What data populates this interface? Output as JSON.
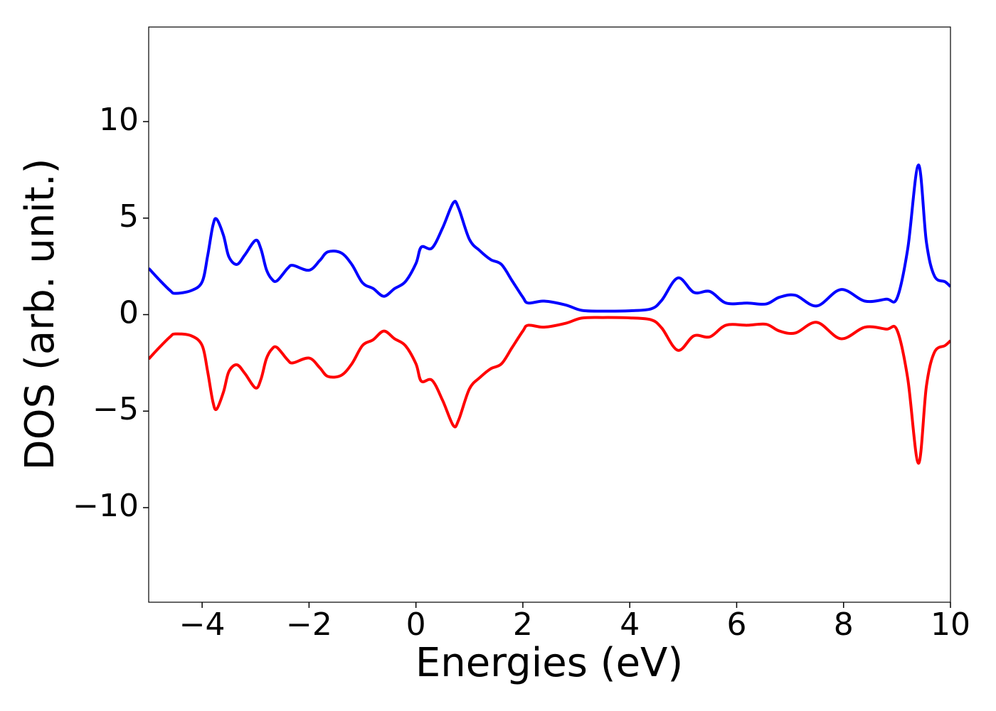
{
  "chart_data": {
    "type": "line",
    "x_label": "Energies (eV)",
    "y_label": "DOS (arb. unit.)",
    "x": [
      -5,
      -4.8,
      -4.6,
      -4.5,
      -4.2,
      -4.0,
      -3.9,
      -3.8,
      -3.73,
      -3.6,
      -3.5,
      -3.35,
      -3.2,
      -3.0,
      -2.9,
      -2.8,
      -2.7,
      -2.6,
      -2.4,
      -2.3,
      -2.0,
      -1.8,
      -1.65,
      -1.4,
      -1.2,
      -1.0,
      -0.8,
      -0.6,
      -0.4,
      -0.2,
      0,
      0.1,
      0.3,
      0.5,
      0.7,
      0.8,
      1.0,
      1.2,
      1.4,
      1.6,
      1.8,
      2.0,
      2.1,
      2.4,
      2.8,
      3.1,
      3.5,
      4.0,
      4.4,
      4.6,
      4.9,
      5.2,
      5.5,
      5.8,
      6.2,
      6.55,
      6.8,
      7.1,
      7.5,
      7.95,
      8.4,
      8.8,
      9.0,
      9.2,
      9.4,
      9.55,
      9.7,
      9.9,
      10
    ],
    "series": [
      {
        "color": "#0000ff",
        "values": [
          2.4,
          1.8,
          1.25,
          1.1,
          1.25,
          1.7,
          3.0,
          4.6,
          4.95,
          4.1,
          3.0,
          2.6,
          3.1,
          3.85,
          3.4,
          2.35,
          1.85,
          1.75,
          2.4,
          2.55,
          2.3,
          2.8,
          3.25,
          3.2,
          2.6,
          1.65,
          1.35,
          0.95,
          1.35,
          1.7,
          2.65,
          3.5,
          3.45,
          4.5,
          5.8,
          5.5,
          3.9,
          3.3,
          2.85,
          2.6,
          1.75,
          0.9,
          0.6,
          0.7,
          0.5,
          0.22,
          0.18,
          0.2,
          0.3,
          0.75,
          1.9,
          1.15,
          1.2,
          0.6,
          0.6,
          0.55,
          0.9,
          1.0,
          0.45,
          1.3,
          0.7,
          0.8,
          0.85,
          3.4,
          7.75,
          3.75,
          2.0,
          1.7,
          1.45
        ]
      },
      {
        "color": "#ff0000",
        "values": [
          -2.3,
          -1.7,
          -1.15,
          -1.0,
          -1.1,
          -1.6,
          -2.9,
          -4.5,
          -4.9,
          -4.0,
          -2.95,
          -2.6,
          -3.05,
          -3.8,
          -3.35,
          -2.3,
          -1.8,
          -1.7,
          -2.35,
          -2.5,
          -2.25,
          -2.75,
          -3.2,
          -3.15,
          -2.55,
          -1.6,
          -1.3,
          -0.85,
          -1.25,
          -1.6,
          -2.55,
          -3.45,
          -3.4,
          -4.45,
          -5.75,
          -5.45,
          -3.85,
          -3.25,
          -2.8,
          -2.55,
          -1.7,
          -0.85,
          -0.55,
          -0.65,
          -0.45,
          -0.18,
          -0.15,
          -0.17,
          -0.27,
          -0.7,
          -1.85,
          -1.1,
          -1.15,
          -0.55,
          -0.55,
          -0.5,
          -0.85,
          -0.95,
          -0.4,
          -1.25,
          -0.65,
          -0.75,
          -0.8,
          -3.3,
          -7.7,
          -3.7,
          -1.95,
          -1.6,
          -1.35
        ]
      }
    ],
    "xlim": [
      -5,
      10
    ],
    "ylim": [
      -14.9,
      14.9
    ],
    "xticks": [
      {
        "value": -4,
        "label": "−4"
      },
      {
        "value": -2,
        "label": "−2"
      },
      0,
      2,
      4,
      6,
      8,
      10
    ],
    "yticks": [
      {
        "value": -10,
        "label": "−10"
      },
      {
        "value": -5,
        "label": "−5"
      },
      0,
      5,
      10
    ],
    "grid": false
  }
}
